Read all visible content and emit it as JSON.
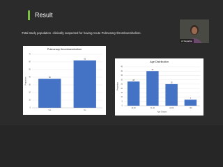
{
  "title": "Result",
  "subtitle": "-Total study population -clinically suspected for having Acute Pulmonary thromboembolism.",
  "presenter": "Al Sagarika",
  "chart_data": [
    {
      "type": "bar",
      "title": "Pulmonary thromboembolism",
      "ylabel": "Proportion",
      "categories": [
        "Yes",
        "No"
      ],
      "values": [
        38,
        62
      ],
      "color": "#4472c4",
      "ylim": [
        0,
        70
      ],
      "yticks": [
        0,
        10,
        20,
        30,
        40,
        50,
        60,
        70
      ],
      "grid": true
    },
    {
      "type": "bar",
      "title": "Age Distribution",
      "ylabel": "Proportion",
      "xlabel": "Age Groups",
      "categories": [
        "20-30",
        "31-40",
        "41-50",
        ">50"
      ],
      "values": [
        28,
        40,
        25,
        7
      ],
      "color": "#4472c4",
      "ylim": [
        0,
        45
      ],
      "yticks": [
        0,
        5,
        10,
        15,
        20,
        25,
        30,
        35,
        40,
        45
      ],
      "grid": true
    }
  ]
}
